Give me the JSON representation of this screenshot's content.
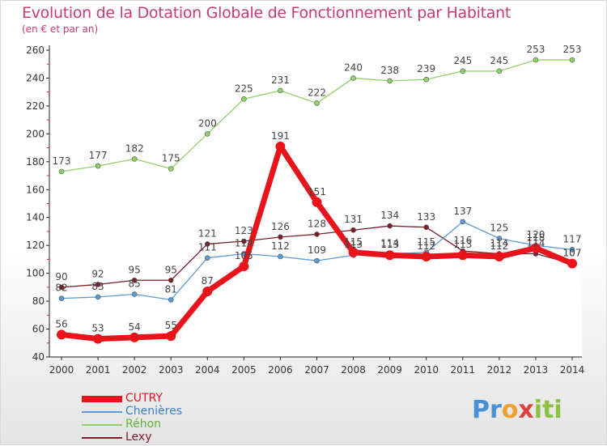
{
  "title": "Evolution de la Dotation Globale de Fonctionnement par Habitant",
  "subtitle": "(en € et par an)",
  "logo_text": "Proxiti",
  "chart_data": {
    "type": "line",
    "title": "Evolution de la Dotation Globale de Fonctionnement par Habitant",
    "subtitle": "(en € et par an)",
    "xlabel": "",
    "ylabel": "",
    "x": [
      2000,
      2001,
      2002,
      2003,
      2004,
      2005,
      2006,
      2007,
      2008,
      2009,
      2010,
      2011,
      2012,
      2013,
      2014
    ],
    "ylim": [
      40,
      260
    ],
    "yticks": [
      40,
      60,
      80,
      100,
      120,
      140,
      160,
      180,
      200,
      220,
      240,
      260
    ],
    "grid": false,
    "legend_position": "bottom-left",
    "series": [
      {
        "name": "CUTRY",
        "color": "#e8141c",
        "values": [
          56,
          53,
          54,
          55,
          87,
          105,
          191,
          151,
          115,
          113,
          112,
          113,
          112,
          118,
          107
        ]
      },
      {
        "name": "Chenières",
        "color": "#5b9bd5",
        "values": [
          82,
          83,
          85,
          81,
          111,
          114,
          112,
          109,
          113,
          114,
          115,
          137,
          125,
          120,
          117
        ]
      },
      {
        "name": "Réhon",
        "color": "#8fd16a",
        "values": [
          173,
          177,
          182,
          175,
          200,
          225,
          231,
          222,
          240,
          238,
          239,
          245,
          245,
          253,
          253
        ]
      },
      {
        "name": "Lexy",
        "color": "#7a1f28",
        "values": [
          90,
          92,
          95,
          95,
          121,
          123,
          126,
          128,
          131,
          134,
          133,
          116,
          114,
          114,
          107
        ]
      }
    ]
  }
}
